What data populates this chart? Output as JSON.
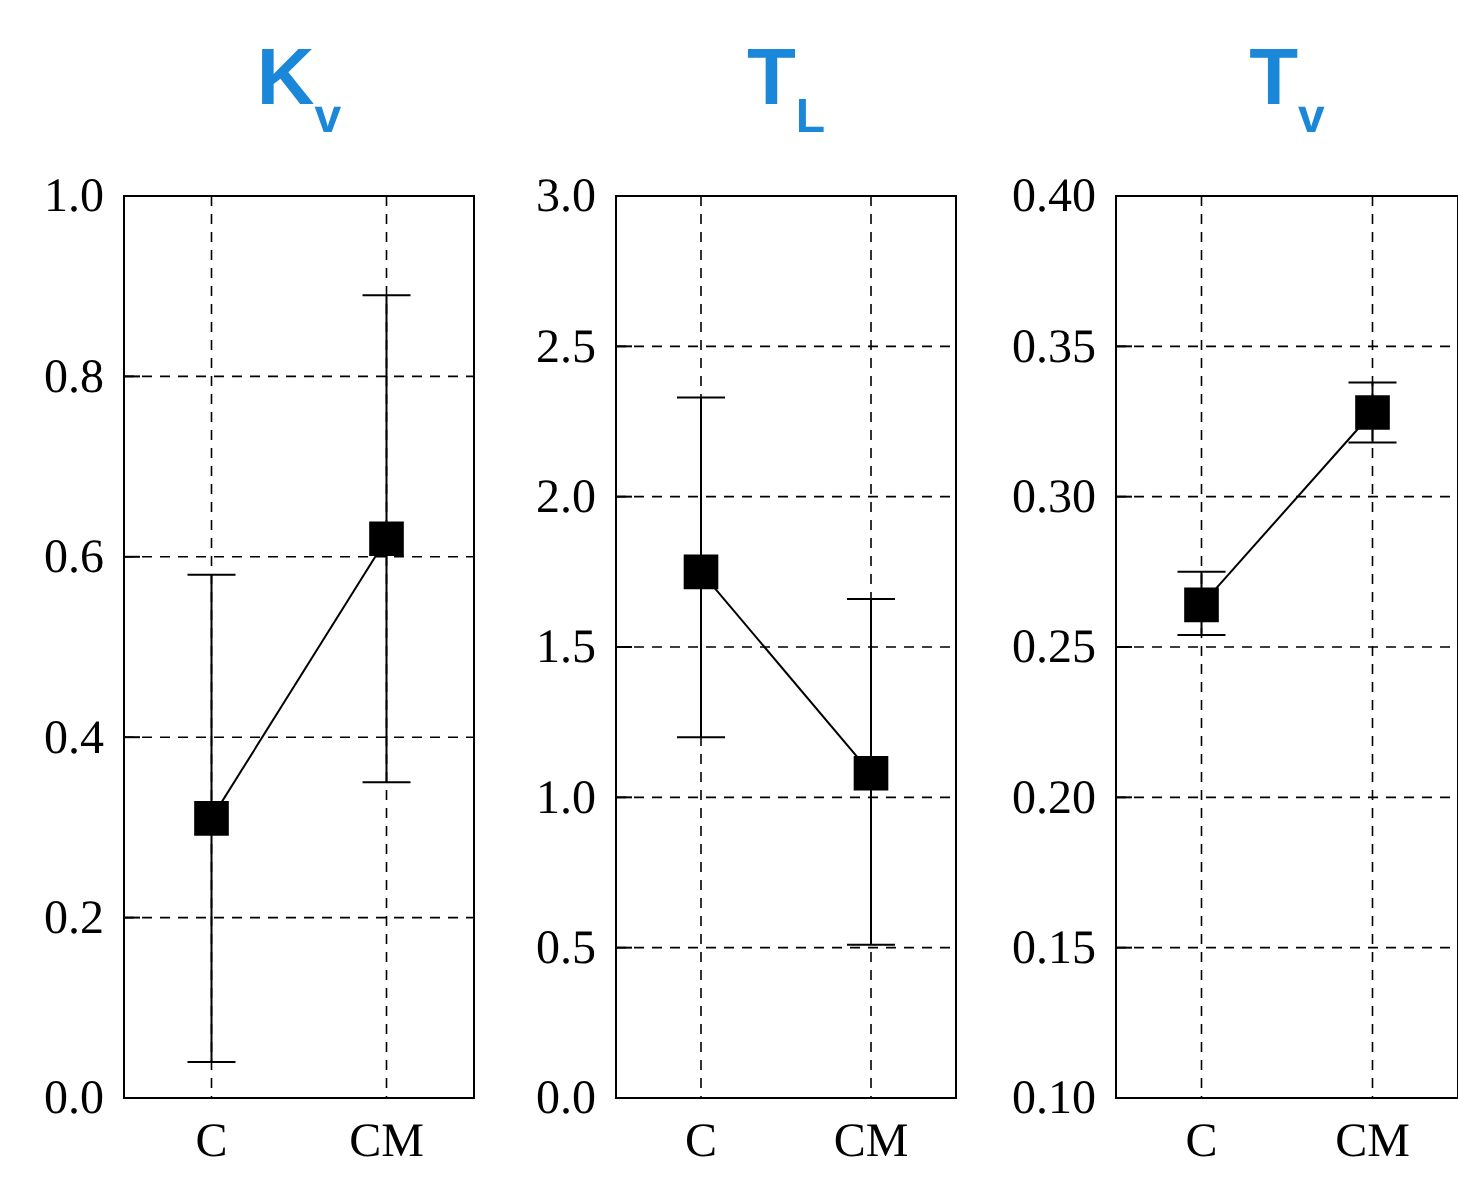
{
  "chart_data": [
    {
      "type": "line",
      "title": "K$_{v}$",
      "categories": [
        "C",
        "CM"
      ],
      "series": [
        {
          "color": "#000000",
          "values": [
            0.31,
            0.62
          ],
          "errors": [
            [
              0.04,
              0.58
            ],
            [
              0.35,
              0.89
            ]
          ]
        }
      ],
      "ylim": [
        0,
        1
      ],
      "yticks": [
        "0.0",
        0.2,
        0.4,
        0.6,
        0.8,
        "1.0"
      ],
      "grid": true,
      "marker": "square",
      "line_style": "solid"
    },
    {
      "type": "line",
      "title": "T$_{L}$",
      "categories": [
        "C",
        "CM"
      ],
      "series": [
        {
          "color": "#000000",
          "values": [
            1.75,
            1.08
          ],
          "errors": [
            [
              1.2,
              2.33
            ],
            [
              0.51,
              1.66
            ]
          ]
        }
      ],
      "ylim": [
        0,
        3
      ],
      "yticks": [
        "0.0",
        0.5,
        "1.0",
        1.5,
        "2.0",
        2.5,
        "3.0"
      ],
      "grid": true,
      "marker": "square",
      "line_style": "solid"
    },
    {
      "type": "line",
      "title": "T$_{v}$",
      "categories": [
        "C",
        "CM"
      ],
      "series": [
        {
          "color": "#000000",
          "values": [
            0.264,
            0.328
          ],
          "errors": [
            [
              0.254,
              0.275
            ],
            [
              0.318,
              0.338
            ]
          ]
        }
      ],
      "ylim": [
        0.1,
        0.4
      ],
      "yticks": [
        "0.10",
        0.15,
        "0.20",
        0.25,
        "0.30",
        0.35,
        "0.40"
      ],
      "grid": true,
      "marker": "square",
      "line_style": "solid"
    }
  ]
}
